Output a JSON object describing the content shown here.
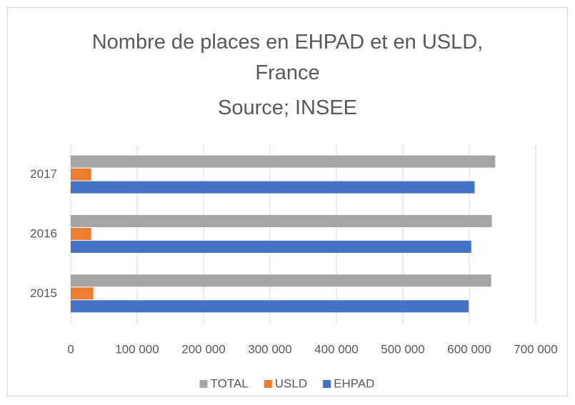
{
  "chart_data": {
    "type": "barh",
    "title": "Nombre de places en EHPAD et en USLD, France",
    "subtitle": "Source; INSEE",
    "categories": [
      "2015",
      "2016",
      "2017"
    ],
    "series": [
      {
        "name": "EHPAD",
        "color": "#4472c4",
        "values": [
          599000,
          603000,
          608000
        ]
      },
      {
        "name": "USLD",
        "color": "#ed7d31",
        "values": [
          34000,
          31000,
          31000
        ]
      },
      {
        "name": "TOTAL",
        "color": "#a5a5a5",
        "values": [
          633000,
          634000,
          639000
        ]
      }
    ],
    "xlim": [
      0,
      700000
    ],
    "xticks": [
      0,
      {
        "value": 100000,
        "label": "100 000"
      },
      {
        "value": 200000,
        "label": "200 000"
      },
      {
        "value": 300000,
        "label": "300 000"
      },
      {
        "value": 400000,
        "label": "400 000"
      },
      {
        "value": 500000,
        "label": "500 000"
      },
      {
        "value": 600000,
        "label": "600 000"
      },
      {
        "value": 700000,
        "label": "700 000"
      }
    ],
    "grid": true,
    "legend": "bottom"
  }
}
